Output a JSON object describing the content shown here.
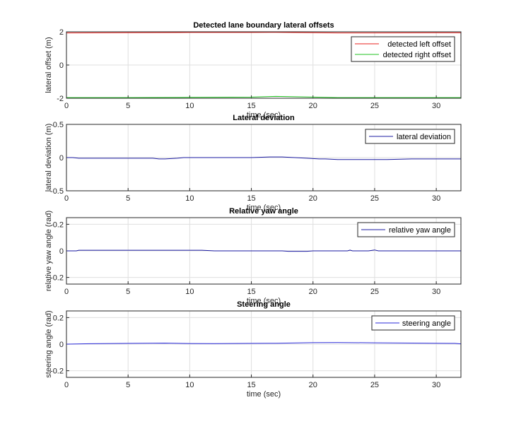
{
  "chart_data": [
    {
      "type": "line",
      "title": "Detected lane boundary lateral offsets",
      "xlabel": "time (sec)",
      "ylabel": "lateral offset (m)",
      "xlim": [
        0,
        32
      ],
      "ylim": [
        -2,
        2
      ],
      "xticks": [
        "0",
        "5",
        "10",
        "15",
        "20",
        "25",
        "30"
      ],
      "yticks": [
        "-2",
        "0",
        "2"
      ],
      "grid": true,
      "legend": "top-right",
      "series": [
        {
          "name": "detected left offset",
          "color": "#e8201c",
          "x": [
            0,
            5,
            10,
            15,
            17,
            20,
            22,
            25,
            30,
            32
          ],
          "y": [
            1.93,
            1.95,
            1.96,
            1.96,
            1.97,
            1.95,
            1.93,
            1.93,
            1.94,
            1.94
          ]
        },
        {
          "name": "detected right offset",
          "color": "#20c020",
          "x": [
            0,
            5,
            10,
            15,
            17,
            20,
            22,
            25,
            30,
            32
          ],
          "y": [
            -1.96,
            -1.96,
            -1.95,
            -1.93,
            -1.89,
            -1.93,
            -1.96,
            -1.96,
            -1.96,
            -1.96
          ]
        }
      ]
    },
    {
      "type": "line",
      "title": "Lateral deviation",
      "xlabel": "time (sec)",
      "ylabel": "lateral deviation (m)",
      "xlim": [
        0,
        32
      ],
      "ylim": [
        -0.5,
        0.5
      ],
      "xticks": [
        "0",
        "5",
        "10",
        "15",
        "20",
        "25",
        "30"
      ],
      "yticks": [
        "-0.5",
        "0",
        "0.5"
      ],
      "grid": true,
      "legend": "top-right",
      "series": [
        {
          "name": "lateral deviation",
          "color": "#1a1aa0",
          "x": [
            0,
            0.5,
            1,
            3,
            5,
            7,
            7.5,
            8,
            9,
            9.5,
            12,
            15,
            16.5,
            17.5,
            18.5,
            19.5,
            20.5,
            21,
            22,
            24,
            26,
            28,
            30,
            32
          ],
          "y": [
            0.0,
            0.0,
            -0.01,
            -0.01,
            -0.01,
            -0.01,
            -0.02,
            -0.02,
            -0.01,
            0.0,
            0.0,
            0.0,
            0.01,
            0.01,
            0.0,
            -0.01,
            -0.02,
            -0.02,
            -0.03,
            -0.03,
            -0.03,
            -0.02,
            -0.02,
            -0.02
          ]
        }
      ]
    },
    {
      "type": "line",
      "title": "Relative yaw angle",
      "xlabel": "time (sec)",
      "ylabel": "relative yaw angle (rad)",
      "xlim": [
        0,
        32
      ],
      "ylim": [
        -0.25,
        0.25
      ],
      "xticks": [
        "0",
        "5",
        "10",
        "15",
        "20",
        "25",
        "30"
      ],
      "yticks": [
        "-0.2",
        "0",
        "0.2"
      ],
      "grid": true,
      "legend": "top-right",
      "series": [
        {
          "name": "relative yaw angle",
          "color": "#1a1aa0",
          "x": [
            0,
            0.8,
            1,
            5,
            10,
            11,
            12,
            15,
            17.5,
            18,
            19.5,
            20,
            22.8,
            23,
            23.2,
            24.5,
            25,
            25.3,
            28,
            32
          ],
          "y": [
            0.0,
            0.0,
            0.005,
            0.005,
            0.005,
            0.005,
            0.0,
            0.0,
            0.0,
            -0.003,
            -0.003,
            0.0,
            0.0,
            0.006,
            0.0,
            0.0,
            0.007,
            0.0,
            0.0,
            0.0
          ]
        }
      ]
    },
    {
      "type": "line",
      "title": "Steering angle",
      "xlabel": "time (sec)",
      "ylabel": "steering angle (rad)",
      "xlim": [
        0,
        32
      ],
      "ylim": [
        -0.25,
        0.25
      ],
      "xticks": [
        "0",
        "5",
        "10",
        "15",
        "20",
        "25",
        "30"
      ],
      "yticks": [
        "-0.2",
        "0",
        "0.2"
      ],
      "grid": true,
      "legend": "top-right",
      "series": [
        {
          "name": "steering angle",
          "color": "#2a2ad8",
          "x": [
            0,
            2,
            5,
            8,
            10,
            12,
            15,
            17,
            20,
            22,
            25,
            28,
            30,
            31.5,
            32
          ],
          "y": [
            0.0,
            0.003,
            0.006,
            0.008,
            0.005,
            0.004,
            0.006,
            0.007,
            0.011,
            0.012,
            0.01,
            0.008,
            0.007,
            0.006,
            0.002
          ]
        }
      ]
    }
  ]
}
